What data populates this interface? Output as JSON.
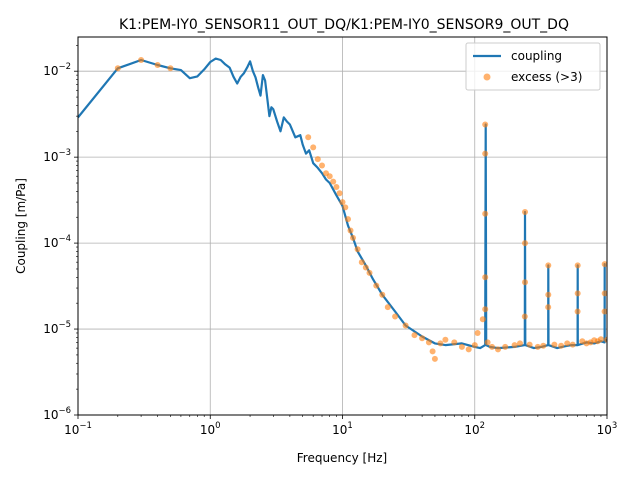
{
  "chart_data": {
    "type": "scatter",
    "title": "K1:PEM-IY0_SENSOR11_OUT_DQ/K1:PEM-IY0_SENSOR9_OUT_DQ",
    "xlabel": "Frequency [Hz]",
    "ylabel": "Coupling [m/Pa]",
    "x_scale": "log",
    "y_scale": "log",
    "xlim": [
      0.1,
      1000
    ],
    "ylim": [
      1e-06,
      0.025
    ],
    "grid": true,
    "legend_position": "top-right",
    "x_ticks": [
      {
        "value": 0.1,
        "base": "10",
        "exp": "−1"
      },
      {
        "value": 1,
        "base": "10",
        "exp": "0"
      },
      {
        "value": 10,
        "base": "10",
        "exp": "1"
      },
      {
        "value": 100,
        "base": "10",
        "exp": "2"
      },
      {
        "value": 1000,
        "base": "10",
        "exp": "3"
      }
    ],
    "y_ticks": [
      {
        "value": 1e-06,
        "base": "10",
        "exp": "−6"
      },
      {
        "value": 1e-05,
        "base": "10",
        "exp": "−5"
      },
      {
        "value": 0.0001,
        "base": "10",
        "exp": "−4"
      },
      {
        "value": 0.001,
        "base": "10",
        "exp": "−3"
      },
      {
        "value": 0.01,
        "base": "10",
        "exp": "−2"
      }
    ],
    "series": [
      {
        "name": "coupling",
        "kind": "line",
        "color": "#1f77b4",
        "x": [
          0.1,
          0.2,
          0.3,
          0.4,
          0.5,
          0.6,
          0.7,
          0.8,
          0.9,
          1.0,
          1.1,
          1.2,
          1.3,
          1.4,
          1.5,
          1.6,
          1.7,
          1.8,
          1.9,
          2.0,
          2.1,
          2.2,
          2.3,
          2.4,
          2.5,
          2.6,
          2.7,
          2.8,
          2.9,
          3.0,
          3.2,
          3.4,
          3.6,
          3.8,
          4.0,
          4.4,
          4.8,
          5.0,
          5.3,
          5.6,
          6.0,
          6.5,
          7.0,
          7.5,
          8.0,
          9.0,
          10,
          11,
          12,
          13,
          15,
          17,
          20,
          25,
          30,
          40,
          50,
          60,
          80,
          100,
          110,
          120,
          121,
          122,
          130,
          150,
          200,
          239,
          240,
          241,
          280,
          320,
          359,
          360,
          361,
          420,
          480,
          540,
          599,
          600,
          601,
          700,
          800,
          900,
          959,
          960,
          961,
          1000
        ],
        "y": [
          0.0029,
          0.0108,
          0.0135,
          0.0118,
          0.0108,
          0.0103,
          0.0083,
          0.0087,
          0.0105,
          0.0128,
          0.014,
          0.0135,
          0.012,
          0.011,
          0.0086,
          0.0072,
          0.0086,
          0.0095,
          0.011,
          0.013,
          0.01,
          0.0085,
          0.0065,
          0.0052,
          0.009,
          0.0078,
          0.0048,
          0.003,
          0.0038,
          0.0036,
          0.0026,
          0.002,
          0.0029,
          0.0026,
          0.0024,
          0.0017,
          0.0018,
          0.0014,
          0.0011,
          0.0012,
          0.00085,
          0.00075,
          0.00065,
          0.00055,
          0.0005,
          0.00036,
          0.00027,
          0.00016,
          0.000115,
          8e-05,
          5.5e-05,
          3.8e-05,
          2.5e-05,
          1.6e-05,
          1.1e-05,
          8.2e-06,
          6.8e-06,
          6.5e-06,
          6.8e-06,
          6.2e-06,
          6e-06,
          6.5e-06,
          0.0024,
          6.5e-06,
          6.2e-06,
          6e-06,
          6.2e-06,
          6.5e-06,
          0.00023,
          6.5e-06,
          6e-06,
          6.2e-06,
          6.5e-06,
          5.5e-05,
          6.5e-06,
          6e-06,
          6.3e-06,
          6.5e-06,
          6.5e-06,
          5.5e-05,
          6.5e-06,
          7e-06,
          6.8e-06,
          7.2e-06,
          7e-06,
          5.7e-05,
          7.2e-06,
          7.5e-06
        ]
      },
      {
        "name": "excess (>3)",
        "kind": "scatter",
        "color": "#ff7f0e",
        "x": [
          0.2,
          0.3,
          0.4,
          0.5,
          5.5,
          6.0,
          6.5,
          7.0,
          7.5,
          8.0,
          8.5,
          9.0,
          9.5,
          10,
          10.5,
          11,
          11.5,
          12,
          13,
          14,
          15,
          16,
          18,
          20,
          22,
          25,
          30,
          35,
          40,
          45,
          48,
          50,
          55,
          60,
          70,
          80,
          90,
          100,
          105,
          115,
          120,
          120,
          120,
          120,
          120,
          125,
          135,
          150,
          170,
          200,
          220,
          239,
          240,
          240,
          240,
          260,
          300,
          330,
          359,
          360,
          360,
          400,
          450,
          500,
          550,
          599,
          600,
          600,
          650,
          700,
          750,
          800,
          850,
          900,
          959,
          960,
          960,
          1000
        ],
        "y": [
          0.0108,
          0.0135,
          0.0118,
          0.0108,
          0.0017,
          0.0013,
          0.00095,
          0.0008,
          0.00065,
          0.0006,
          0.00052,
          0.00045,
          0.00038,
          0.0003,
          0.00026,
          0.00019,
          0.00014,
          0.000115,
          8.5e-05,
          6e-05,
          5.2e-05,
          4.5e-05,
          3.2e-05,
          2.5e-05,
          1.8e-05,
          1.4e-05,
          1.1e-05,
          8.5e-06,
          7.8e-06,
          7e-06,
          5.5e-06,
          4.5e-06,
          6.8e-06,
          7.5e-06,
          7e-06,
          6.2e-06,
          5.8e-06,
          6.5e-06,
          9e-06,
          1.3e-05,
          0.0024,
          0.0011,
          0.00022,
          4e-05,
          1.7e-05,
          7e-06,
          6.2e-06,
          5.8e-06,
          6.2e-06,
          6.5e-06,
          6.8e-06,
          1.4e-05,
          0.00023,
          0.0001,
          3.5e-05,
          6.6e-06,
          6.2e-06,
          6.4e-06,
          1.8e-05,
          5.5e-05,
          2.5e-05,
          6.6e-06,
          6.4e-06,
          6.8e-06,
          6.6e-06,
          1.6e-05,
          5.5e-05,
          2.6e-05,
          7.2e-06,
          6.8e-06,
          7e-06,
          7.4e-06,
          7.2e-06,
          7.6e-06,
          1.6e-05,
          5.7e-05,
          2.6e-05,
          7.5e-06
        ]
      }
    ]
  }
}
